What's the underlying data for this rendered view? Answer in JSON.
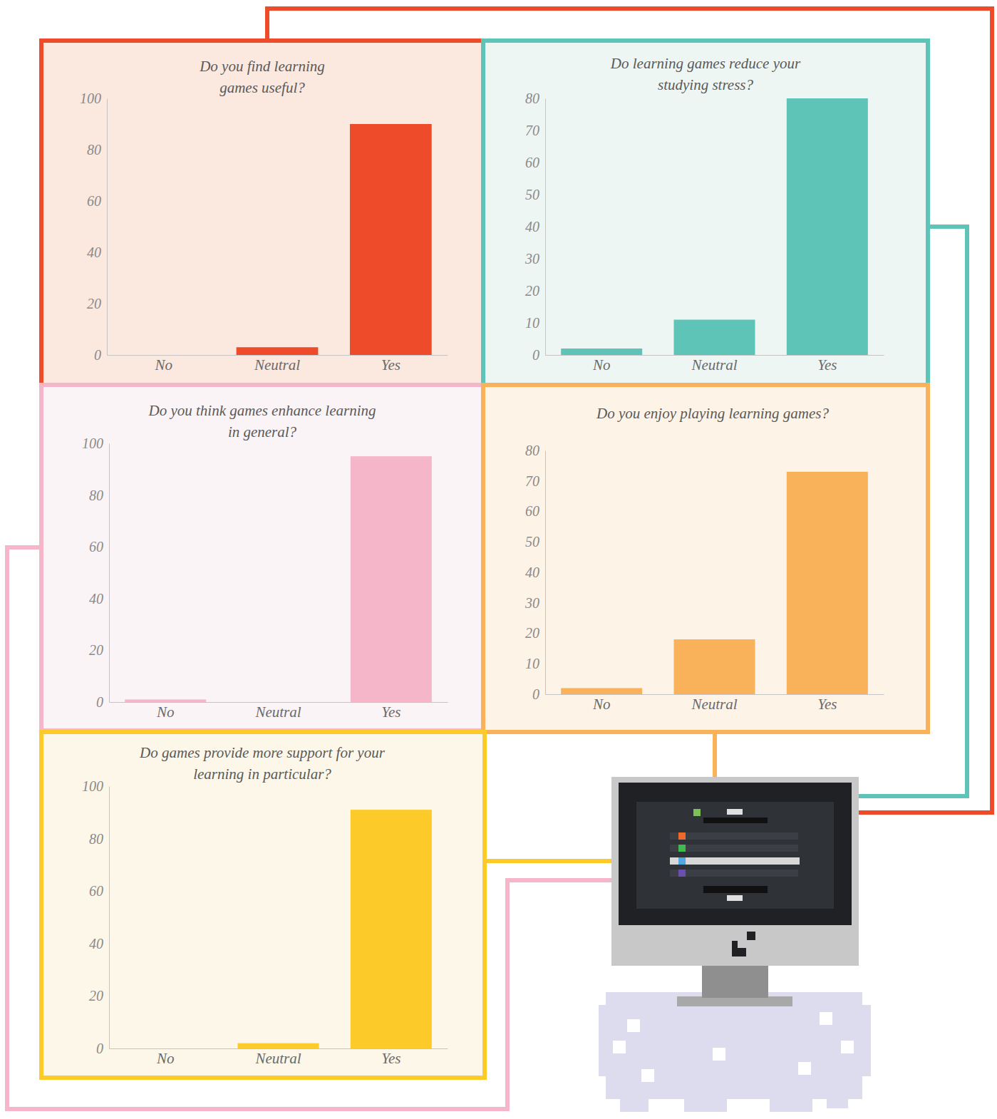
{
  "chart_data": [
    {
      "type": "bar",
      "title": "Do you find learning games useful?",
      "categories": [
        "No",
        "Neutral",
        "Yes"
      ],
      "values": [
        0,
        3,
        90
      ],
      "color": "#ee4b2b",
      "ylim": [
        0,
        100
      ],
      "yticks": [
        0,
        20,
        40,
        60,
        80,
        100
      ]
    },
    {
      "type": "bar",
      "title": "Do learning games reduce your studying stress?",
      "categories": [
        "No",
        "Neutral",
        "Yes"
      ],
      "values": [
        2,
        11,
        80
      ],
      "color": "#5fc4b8",
      "ylim": [
        0,
        80
      ],
      "yticks": [
        0,
        10,
        20,
        30,
        40,
        50,
        60,
        70,
        80
      ]
    },
    {
      "type": "bar",
      "title": "Do you think games enhance learning in general?",
      "categories": [
        "No",
        "Neutral",
        "Yes"
      ],
      "values": [
        1,
        0,
        95
      ],
      "color": "#f4b6c8",
      "ylim": [
        0,
        100
      ],
      "yticks": [
        0,
        20,
        40,
        60,
        80,
        100
      ]
    },
    {
      "type": "bar",
      "title": "Do you enjoy playing learning games?",
      "categories": [
        "No",
        "Neutral",
        "Yes"
      ],
      "values": [
        2,
        18,
        73
      ],
      "color": "#f9b25a",
      "ylim": [
        0,
        80
      ],
      "yticks": [
        0,
        10,
        20,
        30,
        40,
        50,
        60,
        70,
        80
      ]
    },
    {
      "type": "bar",
      "title": "Do games provide more support for your learning in particular?",
      "categories": [
        "No",
        "Neutral",
        "Yes"
      ],
      "values": [
        0,
        2,
        91
      ],
      "color": "#fccb2a",
      "ylim": [
        0,
        100
      ],
      "yticks": [
        0,
        20,
        40,
        60,
        80,
        100
      ]
    }
  ]
}
